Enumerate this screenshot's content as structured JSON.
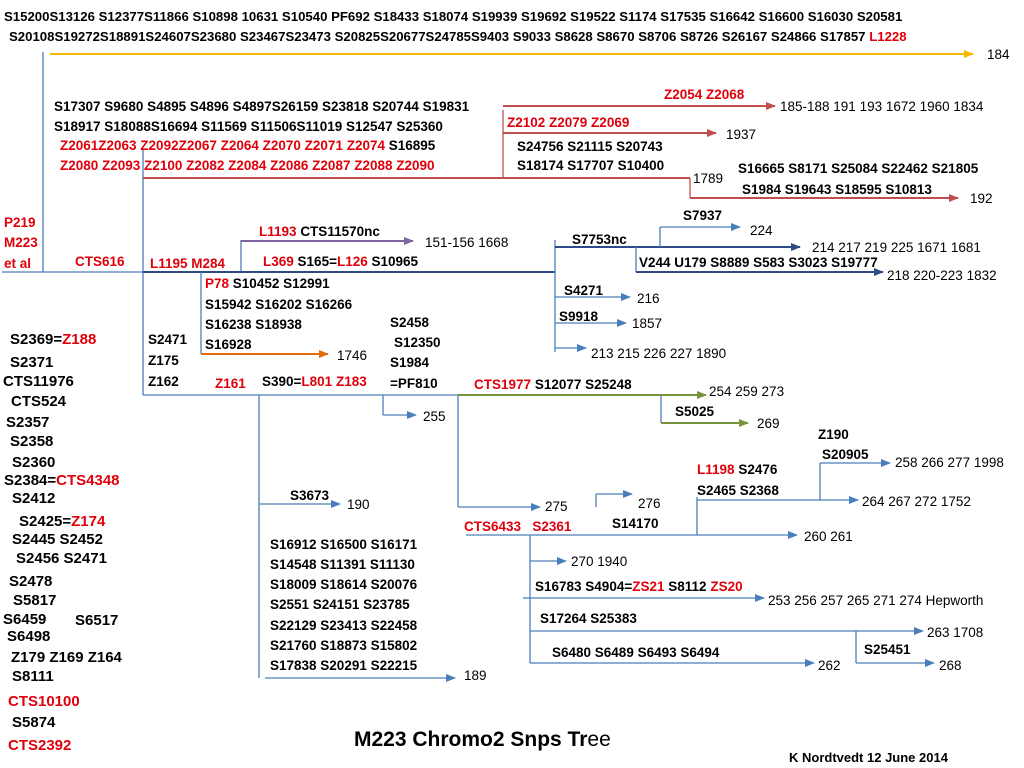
{
  "header": {
    "line1": "S15200S13126 S12377S11866 S10898 10631 S10540 PF692 S18433 S18074 S19939 S19692 S19522 S1174 S17535 S16642 S16600 S16030 S20581",
    "line2": "S20108S19272S18891S24607S23680 S23467S23473 S20825S20677S24785S9403 S9033 S8628 S8670 S8706 S8726 S26167 S24866 S17857",
    "line2_red": "L1228",
    "top_count": "184"
  },
  "left_group": {
    "p219": "P219",
    "m223": "M223",
    "etal": "et al",
    "cts616": "CTS616"
  },
  "upper_block": {
    "l1": "S17307 S9680 S4895 S4896 S4897S26159 S23818 S20744 S19831",
    "l2": "S18917 S18088S16694 S11569 S11506S11019 S12547 S25360",
    "l3_red": "Z2061Z2063 Z2092Z2067 Z2064 Z2070 Z2071 Z2074",
    "l3_black": "S16895",
    "l4_red": "Z2080 Z2093  Z2100 Z2082 Z2084 Z2086 Z2087 Z2088 Z2090"
  },
  "right_upper": {
    "z2054": "Z2054  Z2068",
    "count_185": "185-188 191 193 1672 1960 1834",
    "z2102": "Z2102 Z2079 Z2069",
    "count_1937": "1937",
    "s24756": "S24756 S21115 S20743",
    "s18174": "S18174 S17707 S10400",
    "count_1789": "1789",
    "s16665": "S16665 S8171 S25084 S22462 S21805",
    "s1984": "S1984 S19643 S18595 S10813",
    "count_192": "192"
  },
  "l1193_block": {
    "l1193": "L1193",
    "cts11570": "CTS11570nc",
    "count": "151-156  1668",
    "l1195": "L1195 M284",
    "l369": "L369",
    "s165": "S165=",
    "l126": "L126",
    "s10965": "S10965"
  },
  "s7937_block": {
    "s7937": "S7937",
    "count_224": "224",
    "s7753": "S7753nc",
    "count_214": "214 217 219 225 1671 1681",
    "v244": "V244 U179 S8889 S583 S3023 S19777",
    "count_218": "218 220-223 1832",
    "s4271": "S4271",
    "count_216": "216",
    "s9918": "S9918",
    "count_1857": "1857",
    "count_213": "213 215 226 227 1890"
  },
  "p78_block": {
    "p78": "P78",
    "l1": "S10452 S12991",
    "l2": "S15942 S16202 S16266",
    "l3": "S16238 S18938",
    "l4": "S16928",
    "count_1746": "1746"
  },
  "s2471_block": {
    "s2471": "S2471",
    "z175": "Z175",
    "z162": "Z162",
    "z161": "Z161",
    "s390": "S390=",
    "l801": "L801 Z183"
  },
  "s2458_block": {
    "l1": "S2458",
    "l2": "S12350",
    "l3": "S1984",
    "l4": "=PF810",
    "count_255": "255"
  },
  "cts1977_block": {
    "cts1977": "CTS1977",
    "snps": "S12077 S25248",
    "count_254": "254 259 273",
    "s5025": "S5025",
    "count_269": "269"
  },
  "z190_block": {
    "z190": "Z190",
    "s20905": "S20905",
    "count_258": "258 266 277 1998",
    "l1198": "L1198",
    "s2476": "S2476",
    "s2465": "S2465 S2368",
    "count_264": "264 267 272 1752"
  },
  "cts6433_block": {
    "count_275": "275",
    "count_276": "276",
    "s14170": "S14170",
    "cts6433": "CTS6433",
    "s2361": "S2361",
    "count_260": "260 261",
    "count_270": "270 1940",
    "s16783": "S16783 S4904=",
    "zs21": "ZS21",
    "s8112": "S8112",
    "zs20": "ZS20",
    "count_253": "253 256 257 265 271 274 Hepworth",
    "s17264": "S17264 S25383",
    "count_263": "263 1708",
    "s6480": "S6480 S6489 S6493 S6494",
    "count_262": "262",
    "s25451": "S25451",
    "count_268": "268"
  },
  "s3673_block": {
    "s3673": "S3673",
    "count_190": "190"
  },
  "lower_block": {
    "lines": [
      "S16912 S16500 S16171",
      "S14548 S11391 S11130",
      "S18009 S18614 S20076",
      "S2551 S24151 S23785",
      "S22129 S23413 S22458",
      "S21760 S18873 S15802",
      "S17838 S20291 S22215"
    ],
    "count_189": "189"
  },
  "left_list": {
    "s2369": "S2369=",
    "z188": "Z188",
    "s2371": "S2371",
    "cts11976": "CTS11976",
    "cts524": "CTS524",
    "s2357": "S2357",
    "s2358": "S2358",
    "s2360": "S2360",
    "s2384": "S2384=",
    "cts4348": "CTS4348",
    "s2412": "S2412",
    "s2425": "S2425=",
    "z174": "Z174",
    "s2445": "S2445 S2452",
    "s2456": "S2456 S2471",
    "s2478": "S2478",
    "s5817": "S5817",
    "s6459": "S6459",
    "s6517": "S6517",
    "s6498": "S6498",
    "z179": "Z179 Z169 Z164",
    "s8111": "S8111",
    "cts10100": "CTS10100",
    "s5874": "S5874",
    "cts2392": "CTS2392"
  },
  "footer": {
    "title_a": "M223 Chromo2 Snps Tr",
    "title_b": "ee",
    "credit": "K Nordtvedt  12 June 2014"
  },
  "colors": {
    "branch_blue": "#4a7ebb",
    "navy": "#2e4b86",
    "yellow_arrow": "#f5b800",
    "red_arrow": "#c0504d",
    "purple_arrow": "#8064a2",
    "orange_arrow": "#e36c09",
    "green_arrow": "#77933c",
    "red_text": "#e0000b"
  }
}
